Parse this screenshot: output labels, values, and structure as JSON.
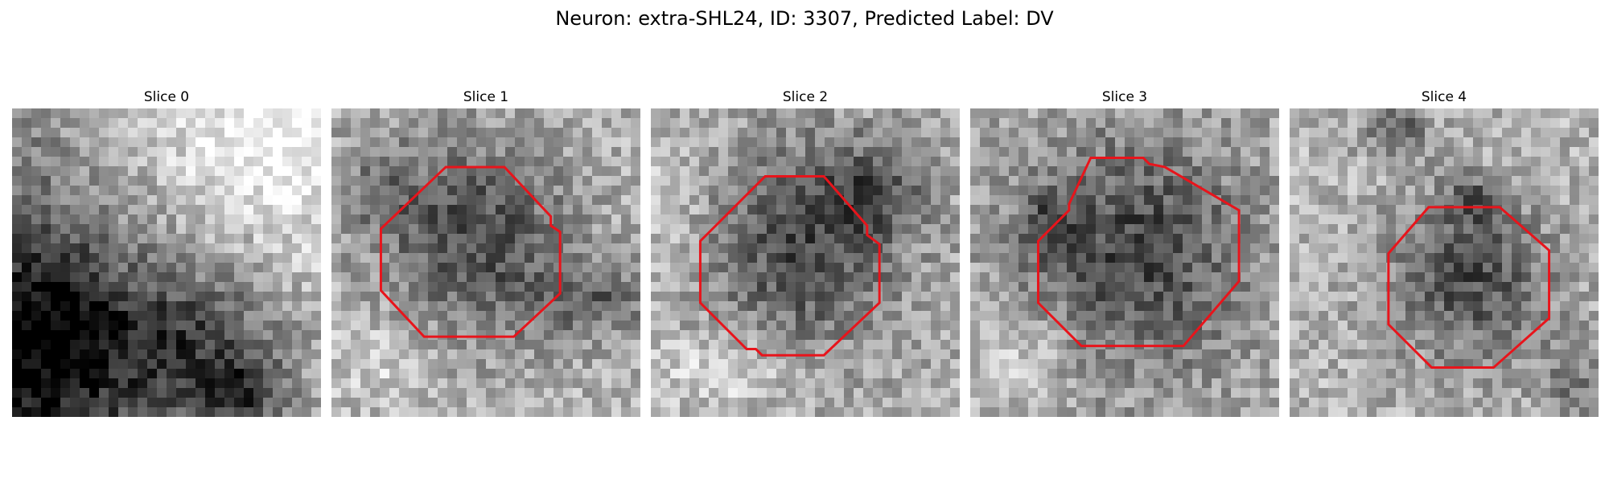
{
  "figure": {
    "title": "Neuron: extra-SHL24, ID: 3307, Predicted Label: DV"
  },
  "colors": {
    "contour": "#e8141b",
    "colormap": "gray"
  },
  "slices": [
    {
      "title": "Slice 0",
      "has_contour": false
    },
    {
      "title": "Slice 1",
      "has_contour": true
    },
    {
      "title": "Slice 2",
      "has_contour": true
    },
    {
      "title": "Slice 3",
      "has_contour": true
    },
    {
      "title": "Slice 4",
      "has_contour": true
    }
  ]
}
